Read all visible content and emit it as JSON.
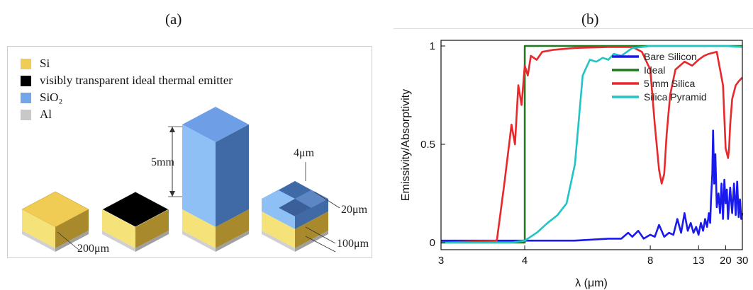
{
  "panel_a": {
    "label": "(a)",
    "legend": [
      {
        "color": "#f0cc55",
        "text": "Si"
      },
      {
        "color": "#000000",
        "text": "visibly transparent ideal thermal emitter"
      },
      {
        "color": "#72a6e9",
        "text": "SiO₂"
      },
      {
        "color": "#c8c8c8",
        "text": "Al"
      }
    ],
    "dimensions": {
      "height": "5mm",
      "pyramid_width": "4μm",
      "pyramid_height": "20μm",
      "base_thickness": "100μm",
      "block_width": "200μm"
    }
  },
  "panel_b": {
    "label": "(b)"
  },
  "chart_data": {
    "type": "line",
    "ylabel": "Emissivity/Absorptivity",
    "xlabel": "λ (μm)",
    "x_scale": "reciprocal",
    "xlim": [
      3,
      30
    ],
    "ylim": [
      0,
      1
    ],
    "xticks": [
      3,
      4,
      8,
      13,
      20,
      30
    ],
    "yticks": [
      0,
      0.5,
      1
    ],
    "ytick_labels": [
      "0",
      "0.5",
      "1"
    ],
    "legend_position": "top-right",
    "series": [
      {
        "name": "Bare Silicon",
        "color": "#1a1aeb",
        "x": [
          3,
          4,
          5,
          6,
          6.5,
          6.8,
          7,
          7.3,
          7.6,
          8,
          8.3,
          8.6,
          9,
          9.4,
          9.8,
          10.2,
          10.6,
          11,
          11.4,
          11.8,
          12.2,
          12.6,
          13,
          13.4,
          13.8,
          14.2,
          14.6,
          15,
          15.3,
          15.5,
          15.8,
          16,
          16.3,
          16.6,
          17,
          17.5,
          18,
          18.5,
          19,
          19.5,
          20,
          20.5,
          21,
          22,
          23,
          24,
          25,
          26,
          27,
          28,
          29,
          30
        ],
        "y": [
          0.01,
          0.01,
          0.01,
          0.02,
          0.02,
          0.05,
          0.03,
          0.06,
          0.02,
          0.04,
          0.03,
          0.09,
          0.03,
          0.05,
          0.04,
          0.12,
          0.05,
          0.15,
          0.06,
          0.1,
          0.05,
          0.08,
          0.04,
          0.1,
          0.06,
          0.12,
          0.08,
          0.15,
          0.1,
          0.22,
          0.35,
          0.57,
          0.3,
          0.45,
          0.18,
          0.25,
          0.15,
          0.3,
          0.12,
          0.32,
          0.2,
          0.27,
          0.12,
          0.28,
          0.15,
          0.3,
          0.14,
          0.31,
          0.13,
          0.22,
          0.12,
          0.15
        ]
      },
      {
        "name": "Ideal",
        "color": "#1f7a1f",
        "x": [
          3,
          4,
          4,
          30
        ],
        "y": [
          0,
          0,
          1,
          1
        ]
      },
      {
        "name": "5 mm Silica",
        "color": "#e8282b",
        "x": [
          3,
          3.6,
          3.7,
          3.8,
          3.85,
          3.9,
          3.95,
          4,
          4.05,
          4.1,
          4.2,
          4.3,
          4.5,
          5,
          6,
          7,
          7.5,
          8,
          8.3,
          8.6,
          8.8,
          9,
          9.2,
          9.5,
          10,
          11,
          12,
          13,
          14,
          15,
          17,
          19,
          20,
          21,
          21.5,
          22,
          23,
          25,
          27,
          30
        ],
        "y": [
          0,
          0.01,
          0.3,
          0.6,
          0.5,
          0.8,
          0.7,
          0.9,
          0.85,
          0.95,
          0.93,
          0.97,
          0.98,
          0.99,
          0.995,
          0.995,
          0.97,
          0.88,
          0.6,
          0.37,
          0.3,
          0.35,
          0.55,
          0.75,
          0.88,
          0.92,
          0.9,
          0.93,
          0.95,
          0.96,
          0.97,
          0.8,
          0.48,
          0.43,
          0.48,
          0.6,
          0.73,
          0.8,
          0.82,
          0.84
        ]
      },
      {
        "name": "Silica Pyramid",
        "color": "#21c4c4",
        "x": [
          3,
          3.8,
          4,
          4.2,
          4.4,
          4.6,
          4.8,
          5,
          5.2,
          5.4,
          5.6,
          5.8,
          6,
          6.2,
          6.5,
          7,
          7.5,
          8,
          9,
          10,
          13,
          20,
          30
        ],
        "y": [
          0,
          0,
          0.01,
          0.05,
          0.1,
          0.14,
          0.2,
          0.4,
          0.85,
          0.93,
          0.92,
          0.94,
          0.93,
          0.96,
          0.95,
          0.99,
          0.995,
          1,
          1,
          1,
          1,
          1,
          0.995
        ]
      }
    ]
  }
}
